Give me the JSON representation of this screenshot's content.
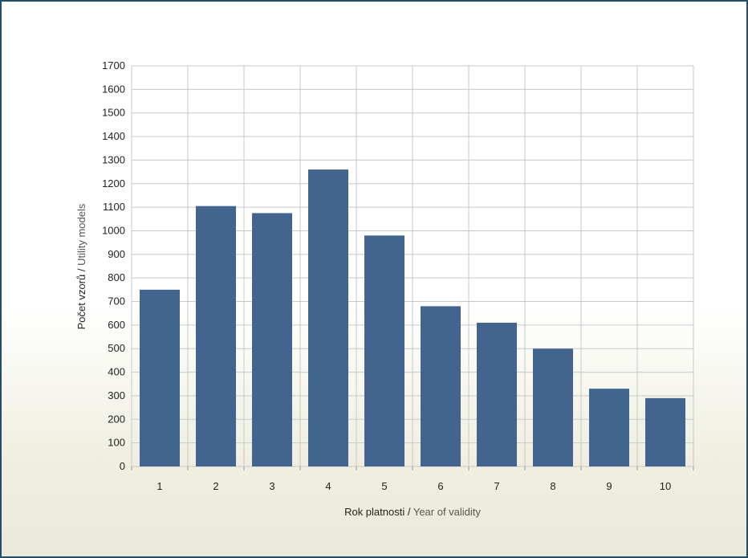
{
  "chart_data": {
    "type": "bar",
    "categories": [
      "1",
      "2",
      "3",
      "4",
      "5",
      "6",
      "7",
      "8",
      "9",
      "10"
    ],
    "values": [
      750,
      1105,
      1075,
      1260,
      980,
      680,
      610,
      500,
      330,
      290
    ],
    "title": "",
    "xlabel": {
      "primary": "Rok platnosti",
      "separator": " / ",
      "secondary": "Year of validity"
    },
    "ylabel": {
      "primary": "Počet vzorů",
      "separator": " / ",
      "secondary": "Utility models"
    },
    "ylim": [
      0,
      1700
    ],
    "yticks": [
      0,
      100,
      200,
      300,
      400,
      500,
      600,
      700,
      800,
      900,
      1000,
      1100,
      1200,
      1300,
      1400,
      1500,
      1600,
      1700
    ],
    "grid": true,
    "bar_color": "#43648f",
    "grid_color": "#c8c8c8",
    "frame_color": "#1f4e6e"
  }
}
